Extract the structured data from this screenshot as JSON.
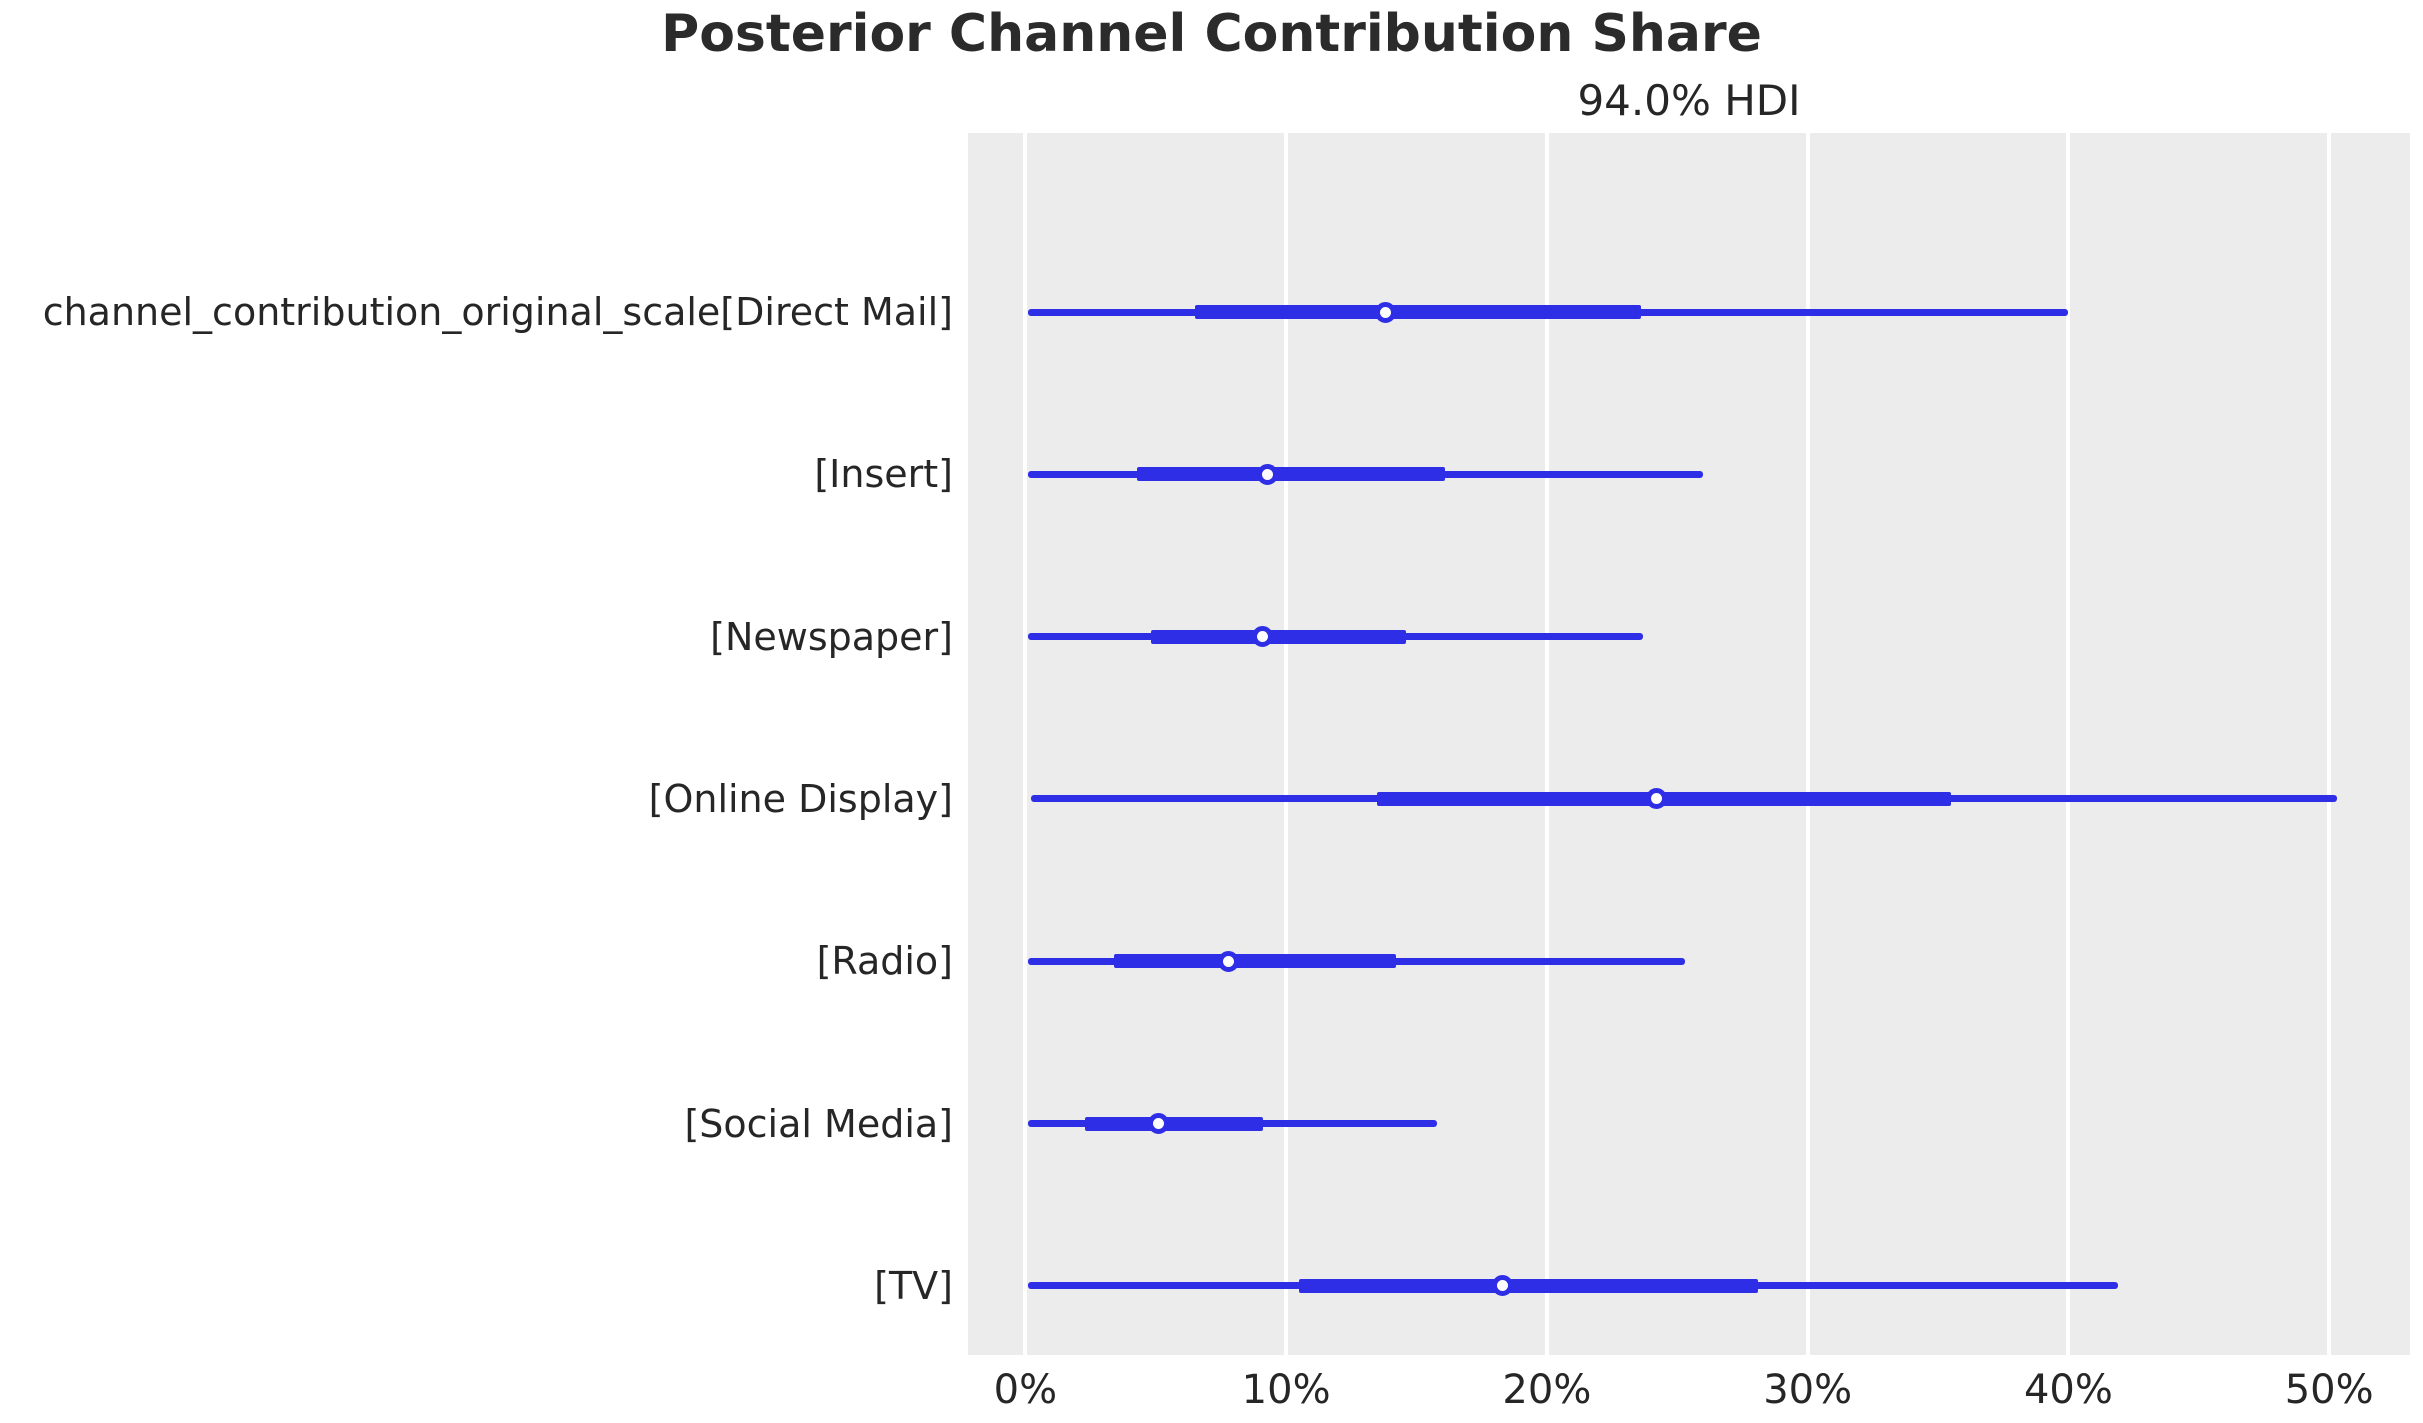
{
  "title": "Posterior Channel Contribution Share",
  "subtitle": "94.0% HDI",
  "chart_data": {
    "type": "forest",
    "title": "Posterior Channel Contribution Share",
    "subtitle": "94.0% HDI",
    "hdi_probability": "94.0%",
    "xlabel": "",
    "ylabel": "",
    "x_axis": {
      "min": -2.2,
      "max": 53.1,
      "unit": "%",
      "grid": true,
      "ticks": [
        {
          "value": 0,
          "label": "0%"
        },
        {
          "value": 10,
          "label": "10%"
        },
        {
          "value": 20,
          "label": "20%"
        },
        {
          "value": 30,
          "label": "30%"
        },
        {
          "value": 40,
          "label": "40%"
        },
        {
          "value": 50,
          "label": "50%"
        }
      ]
    },
    "rows": [
      {
        "label": "channel_contribution_original_scale[Direct Mail]",
        "hdi_low": 0.1,
        "quartile_low": 6.5,
        "median": 13.8,
        "quartile_high": 23.6,
        "hdi_high": 40.0
      },
      {
        "label": "[Insert]",
        "hdi_low": 0.1,
        "quartile_low": 4.3,
        "median": 9.3,
        "quartile_high": 16.1,
        "hdi_high": 26.0
      },
      {
        "label": "[Newspaper]",
        "hdi_low": 0.1,
        "quartile_low": 4.8,
        "median": 9.1,
        "quartile_high": 14.6,
        "hdi_high": 23.7
      },
      {
        "label": "[Online Display]",
        "hdi_low": 0.2,
        "quartile_low": 13.5,
        "median": 24.2,
        "quartile_high": 35.5,
        "hdi_high": 50.3
      },
      {
        "label": "[Radio]",
        "hdi_low": 0.1,
        "quartile_low": 3.4,
        "median": 7.8,
        "quartile_high": 14.2,
        "hdi_high": 25.3
      },
      {
        "label": "[Social Media]",
        "hdi_low": 0.1,
        "quartile_low": 2.3,
        "median": 5.1,
        "quartile_high": 9.1,
        "hdi_high": 15.8
      },
      {
        "label": "[TV]",
        "hdi_low": 0.1,
        "quartile_low": 10.5,
        "median": 18.3,
        "quartile_high": 28.1,
        "hdi_high": 41.9
      }
    ],
    "colors": {
      "line": "#2e2ee6",
      "marker_face": "#ffffff",
      "plot_background": "#ececec",
      "gridline": "#ffffff",
      "text": "#262626"
    },
    "legend": null
  }
}
